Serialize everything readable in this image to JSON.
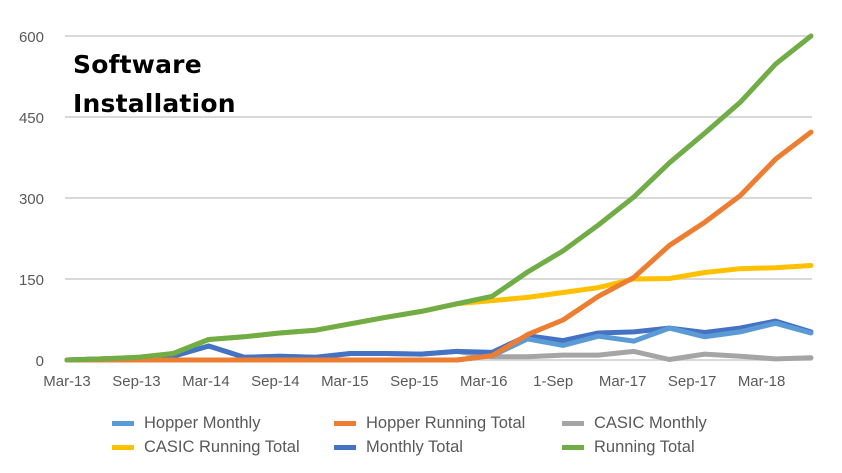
{
  "chart_data": {
    "type": "line",
    "title": "Software Installation",
    "xlabel": "",
    "ylabel": "",
    "ylim": [
      0,
      600
    ],
    "yticks": [
      0,
      150,
      300,
      450,
      600
    ],
    "grid": true,
    "legend_position": "bottom",
    "x": [
      "Mar-13",
      "Jun-13",
      "Sep-13",
      "Dec-13",
      "Mar-14",
      "Jun-14",
      "Sep-14",
      "Dec-14",
      "Mar-15",
      "Jun-15",
      "Sep-15",
      "Dec-15",
      "Mar-16",
      "Jun-16",
      "1-Sep",
      "Dec-16",
      "Mar-17",
      "Jun-17",
      "Sep-17",
      "Dec-17",
      "Mar-18",
      "Jun-18"
    ],
    "xtick_labels": [
      "Mar-13",
      "Sep-13",
      "Mar-14",
      "Sep-14",
      "Mar-15",
      "Sep-15",
      "Mar-16",
      "1-Sep",
      "Mar-17",
      "Sep-17",
      "Mar-18"
    ],
    "series": [
      {
        "name": "CASIC Monthly",
        "color": "#A5A5A5",
        "values": [
          0,
          2,
          3,
          7,
          26,
          5,
          7,
          5,
          12,
          12,
          11,
          16,
          6,
          6,
          9,
          9,
          16,
          1,
          11,
          7,
          2,
          4
        ]
      },
      {
        "name": "CASIC Running Total",
        "color": "#FFC000",
        "values": [
          0,
          2,
          5,
          12,
          38,
          43,
          50,
          55,
          67,
          79,
          90,
          104,
          110,
          116,
          125,
          134,
          150,
          151,
          162,
          169,
          171,
          175
        ]
      },
      {
        "name": "Monthly Total",
        "color": "#4472C4",
        "values": [
          0,
          2,
          3,
          7,
          26,
          5,
          7,
          5,
          12,
          12,
          11,
          16,
          14,
          45,
          36,
          50,
          52,
          59,
          51,
          59,
          72,
          52
        ]
      },
      {
        "name": "Hopper Monthly",
        "color": "#5B9BD5",
        "values": [
          0,
          0,
          0,
          0,
          0,
          0,
          0,
          0,
          0,
          0,
          0,
          0,
          8,
          39,
          27,
          44,
          35,
          59,
          43,
          52,
          68,
          50
        ]
      },
      {
        "name": "Hopper Running Total",
        "color": "#ED7D31",
        "values": [
          0,
          0,
          0,
          0,
          0,
          0,
          0,
          0,
          0,
          0,
          0,
          0,
          8,
          47,
          74,
          118,
          153,
          212,
          255,
          304,
          372,
          422
        ]
      },
      {
        "name": "Running Total",
        "color": "#70AD47",
        "values": [
          0,
          2,
          5,
          12,
          38,
          43,
          50,
          55,
          67,
          79,
          90,
          104,
          118,
          163,
          202,
          250,
          302,
          365,
          420,
          477,
          548,
          600
        ]
      }
    ],
    "legend": [
      {
        "name": "Hopper Monthly",
        "color": "#5B9BD5"
      },
      {
        "name": "Hopper Running Total",
        "color": "#ED7D31"
      },
      {
        "name": "CASIC Monthly",
        "color": "#A5A5A5"
      },
      {
        "name": "CASIC Running Total",
        "color": "#FFC000"
      },
      {
        "name": "Monthly Total",
        "color": "#4472C4"
      },
      {
        "name": "Running Total",
        "color": "#70AD47"
      }
    ]
  },
  "title_lines": [
    "Software",
    "Installation"
  ],
  "gridline_color": "#D9D9D9"
}
